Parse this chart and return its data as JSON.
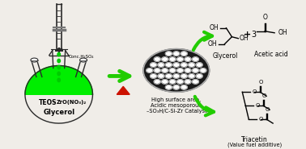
{
  "bg_color": "#f0ede8",
  "flask_fill_color": "#00ee00",
  "flask_outline_color": "#2a2a2a",
  "arrow_green": "#22cc00",
  "arrow_red": "#cc1100",
  "text_teos": "TEOS",
  "text_zr": "ZrO(NO₃)₂",
  "text_glycerol_flask": "Glycerol",
  "text_conc": "Conc.H₂SO₄",
  "text_high": "High surface area,",
  "text_acidic": "Acidic mesoporous",
  "text_catalyst": "–SO₃H/C-Si-Zr Catalyst",
  "text_glycerol_label": "Glycerol",
  "text_acetic": "Acetic acid",
  "text_triacetin": "Triacetin",
  "text_value": "(Value fuel additive)",
  "text_plus": "+",
  "text_3": "3"
}
